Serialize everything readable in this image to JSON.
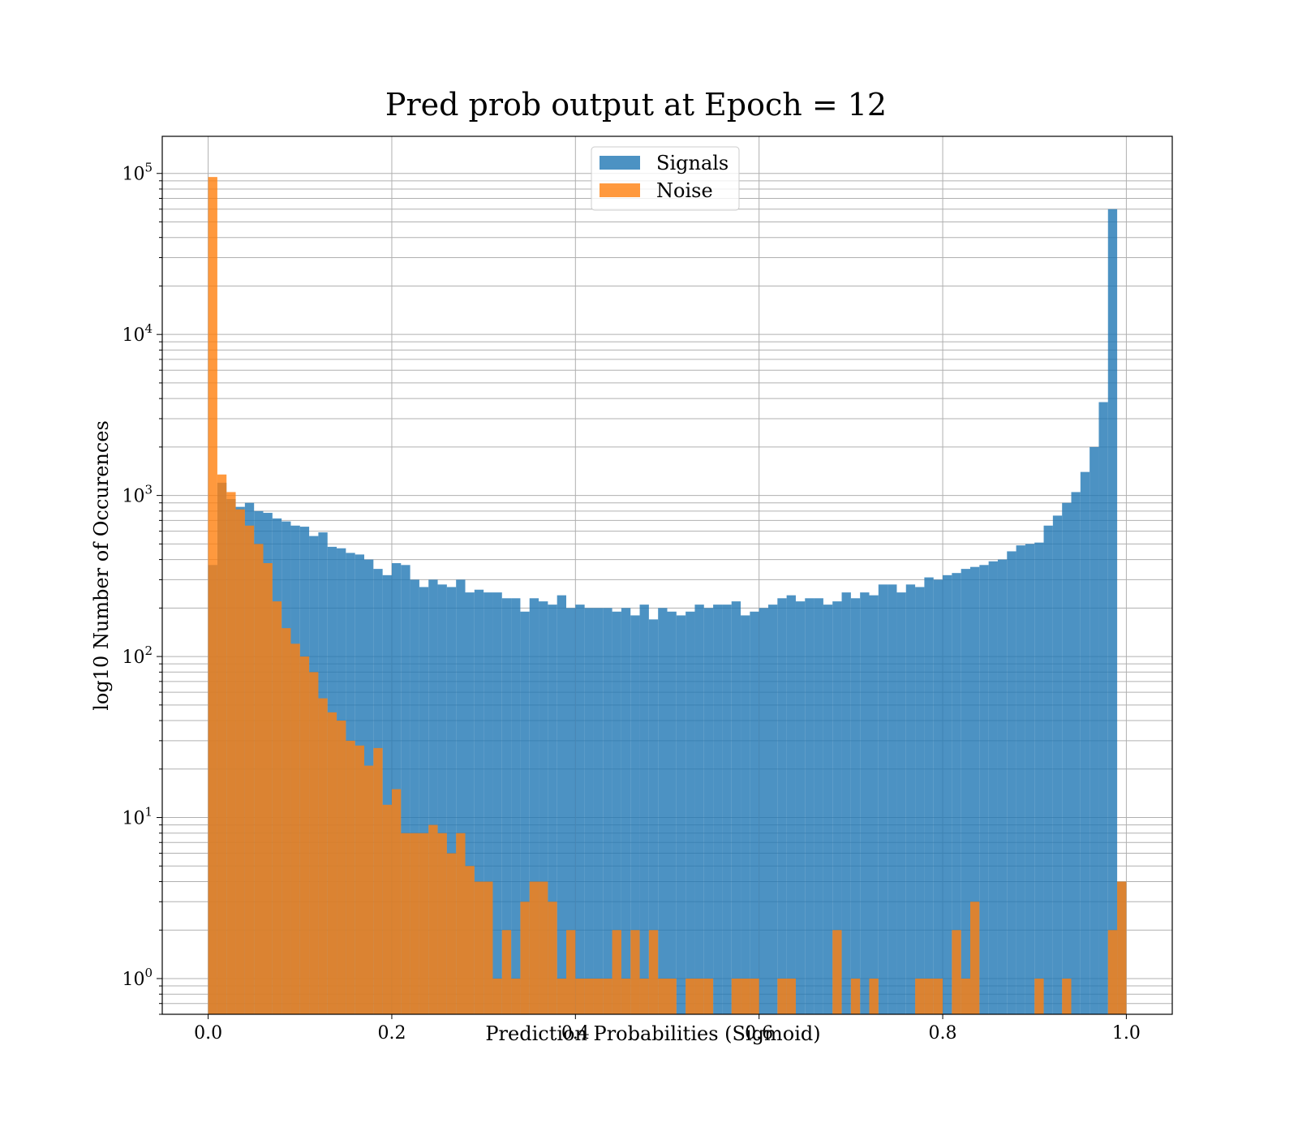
{
  "chart_data": {
    "type": "bar",
    "title": "Pred prob output at Epoch = 12",
    "xlabel": "Prediction Probabilities (Sigmoid)",
    "ylabel": "log10 Number of Occurences",
    "xlim": [
      -0.05,
      1.05
    ],
    "ylim": [
      0.6,
      170000
    ],
    "yscale": "log",
    "grid": true,
    "legend_position": "top-center",
    "x_ticks": [
      0.0,
      0.2,
      0.4,
      0.6,
      0.8,
      1.0
    ],
    "x_tick_labels": [
      "0.0",
      "0.2",
      "0.4",
      "0.6",
      "0.8",
      "1.0"
    ],
    "y_ticks": [
      {
        "value": 1,
        "base": "10",
        "exp": "0"
      },
      {
        "value": 10,
        "base": "10",
        "exp": "1"
      },
      {
        "value": 100,
        "base": "10",
        "exp": "2"
      },
      {
        "value": 1000,
        "base": "10",
        "exp": "3"
      },
      {
        "value": 10000,
        "base": "10",
        "exp": "4"
      },
      {
        "value": 100000,
        "base": "10",
        "exp": "5"
      }
    ],
    "bin_width": 0.01,
    "bin_start": 0.0,
    "series": [
      {
        "name": "Signals",
        "color": "#1f77b4",
        "values": [
          370,
          1200,
          950,
          850,
          900,
          800,
          780,
          720,
          690,
          650,
          640,
          560,
          590,
          480,
          470,
          440,
          430,
          400,
          350,
          320,
          380,
          370,
          300,
          270,
          300,
          280,
          270,
          300,
          250,
          260,
          250,
          250,
          230,
          230,
          190,
          230,
          220,
          210,
          240,
          200,
          210,
          200,
          200,
          200,
          190,
          200,
          180,
          210,
          170,
          200,
          190,
          180,
          190,
          210,
          200,
          210,
          210,
          220,
          180,
          190,
          200,
          210,
          230,
          240,
          220,
          230,
          230,
          210,
          220,
          250,
          230,
          250,
          240,
          280,
          280,
          250,
          280,
          270,
          310,
          300,
          320,
          330,
          350,
          360,
          370,
          390,
          400,
          450,
          490,
          500,
          510,
          650,
          750,
          900,
          1050,
          1400,
          2000,
          3800,
          60000,
          4
        ],
        "opacity": 0.8
      },
      {
        "name": "Noise",
        "color": "#ff7f0e",
        "values": [
          95000,
          1350,
          1050,
          820,
          650,
          500,
          380,
          220,
          150,
          120,
          100,
          80,
          55,
          45,
          40,
          30,
          28,
          21,
          27,
          12,
          15,
          8,
          8,
          8,
          9,
          8,
          6,
          8,
          5,
          4,
          4,
          1,
          2,
          1,
          3,
          4,
          4,
          3,
          1,
          2,
          1,
          1,
          1,
          1,
          2,
          1,
          2,
          1,
          2,
          1,
          1,
          0,
          1,
          1,
          1,
          0,
          0,
          1,
          1,
          1,
          0,
          0,
          1,
          1,
          0,
          0,
          0,
          0,
          2,
          0,
          1,
          0,
          1,
          0,
          0,
          0,
          0,
          1,
          1,
          1,
          0,
          2,
          1,
          3,
          0,
          0,
          0,
          0,
          0,
          0,
          1,
          0,
          0,
          1,
          0,
          0,
          0,
          0,
          2,
          4
        ],
        "opacity": 0.8
      }
    ]
  }
}
